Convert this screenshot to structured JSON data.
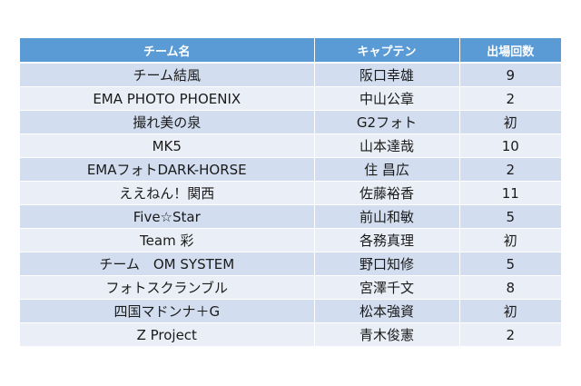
{
  "table": {
    "headers": [
      "チーム名",
      "キャプテン",
      "出場回数"
    ],
    "rows": [
      [
        "チーム結風",
        "阪口幸雄",
        "9"
      ],
      [
        "EMA PHOTO PHOENIX",
        "中山公章",
        "2"
      ],
      [
        "撮れ美の泉",
        "G2フォト",
        "初"
      ],
      [
        "MK5",
        "山本達哉",
        "10"
      ],
      [
        "EMAフォトDARK-HORSE",
        "住 昌広",
        "2"
      ],
      [
        "ええねん！関西",
        "佐藤裕香",
        "11"
      ],
      [
        "Five☆Star",
        "前山和敏",
        "5"
      ],
      [
        "Team 彩",
        "各務真理",
        "初"
      ],
      [
        "チーム　OM SYSTEM",
        "野口知修",
        "5"
      ],
      [
        "フォトスクランブル",
        "宮澤千文",
        "8"
      ],
      [
        "四国マドンナ＋G",
        "松本強資",
        "初"
      ],
      [
        "Z Project",
        "青木俊憲",
        "2"
      ]
    ]
  },
  "colors": {
    "header_bg": "#5b9bd5",
    "row_odd": "#d2def0",
    "row_even": "#eaeff7"
  }
}
